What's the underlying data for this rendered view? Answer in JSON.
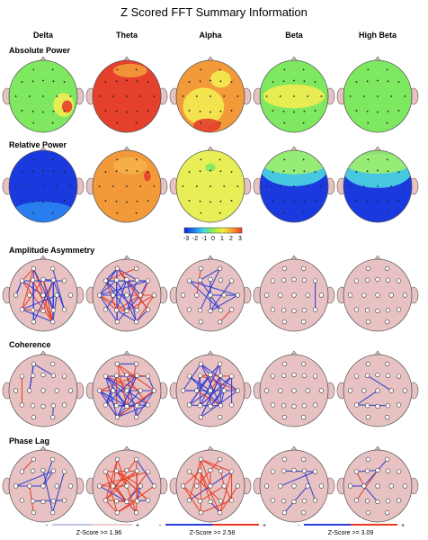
{
  "title": "Z Scored FFT Summary Information",
  "bands": [
    "Delta",
    "Theta",
    "Alpha",
    "Beta",
    "High Beta"
  ],
  "sections": {
    "absolute_power": "Absolute Power",
    "relative_power": "Relative Power",
    "amplitude_asymmetry": "Amplitude Asymmetry",
    "coherence": "Coherence",
    "phase_lag": "Phase Lag"
  },
  "color_scale": {
    "ticks": [
      "-3",
      "-2",
      "-1",
      "0",
      "1",
      "2",
      "3"
    ],
    "colors": [
      "#0a2ad8",
      "#1d7ef0",
      "#3fd6e8",
      "#8ef04a",
      "#f6ee3a",
      "#f6a02c",
      "#e83a20"
    ]
  },
  "thresholds": [
    {
      "label": "Z-Score >= 1.96",
      "minus": "-",
      "plus": "+"
    },
    {
      "label": "Z-Score >= 2.58",
      "minus": "-",
      "plus": "+"
    },
    {
      "label": "Z-Score >= 3.09",
      "minus": "-",
      "plus": "+"
    }
  ],
  "colors": {
    "head_pink": "#e8c2c2",
    "positive_line": "#e83a20",
    "negative_line": "#2a3ad8",
    "power_green": "#7ee860",
    "power_red": "#e4402c",
    "power_orange": "#f29a3a",
    "power_yellow": "#f3ec52",
    "power_blue": "#1a3ae0"
  }
}
